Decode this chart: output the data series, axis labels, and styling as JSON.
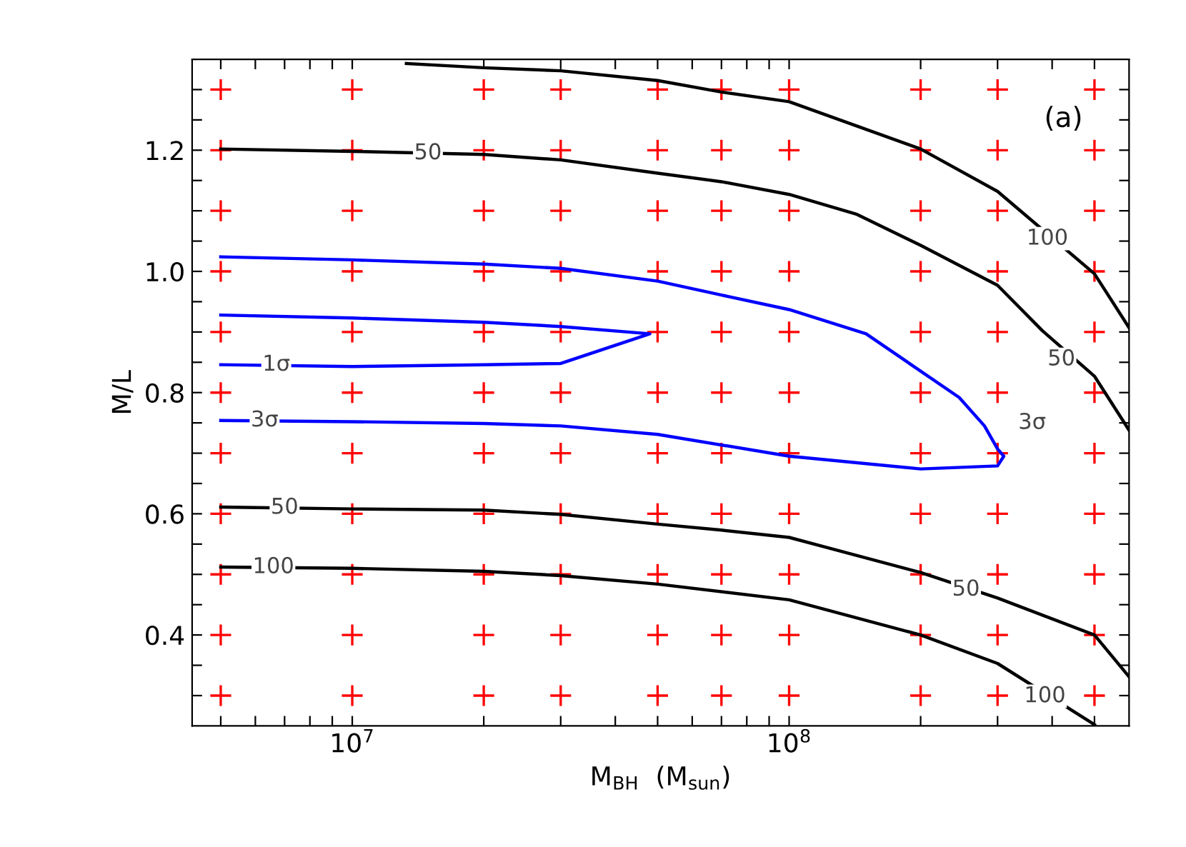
{
  "chart_data": {
    "type": "line",
    "xlabel": "M$_{BH}$  (M$_{sun}$)",
    "ylabel": "M/L",
    "log": "x",
    "grid": false,
    "legend": false,
    "xlim": [
      4300000.0,
      600000000.0
    ],
    "ylim": [
      0.25,
      1.35
    ],
    "xticks": [
      {
        "value": 5000000.0,
        "label": null
      },
      {
        "value": 6000000.0,
        "label": null
      },
      {
        "value": 7000000.0,
        "label": null
      },
      {
        "value": 8000000.0,
        "label": null
      },
      {
        "value": 9000000.0,
        "label": null
      },
      {
        "value": 10000000.0,
        "label": "10$^{7}$"
      },
      {
        "value": 20000000.0,
        "label": null
      },
      {
        "value": 30000000.0,
        "label": null
      },
      {
        "value": 40000000.0,
        "label": null
      },
      {
        "value": 50000000.0,
        "label": null
      },
      {
        "value": 60000000.0,
        "label": null
      },
      {
        "value": 70000000.0,
        "label": null
      },
      {
        "value": 80000000.0,
        "label": null
      },
      {
        "value": 90000000.0,
        "label": null
      },
      {
        "value": 100000000.0,
        "label": "10$^{8}$"
      },
      {
        "value": 200000000.0,
        "label": null
      },
      {
        "value": 300000000.0,
        "label": null
      },
      {
        "value": 400000000.0,
        "label": null
      },
      {
        "value": 500000000.0,
        "label": null
      }
    ],
    "yticks": [
      {
        "value": 0.3,
        "label": null
      },
      {
        "value": 0.35,
        "label": null
      },
      {
        "value": 0.4,
        "label": "0.4"
      },
      {
        "value": 0.45,
        "label": null
      },
      {
        "value": 0.5,
        "label": null
      },
      {
        "value": 0.55,
        "label": null
      },
      {
        "value": 0.6,
        "label": "0.6"
      },
      {
        "value": 0.65,
        "label": null
      },
      {
        "value": 0.7,
        "label": null
      },
      {
        "value": 0.75,
        "label": null
      },
      {
        "value": 0.8,
        "label": "0.8"
      },
      {
        "value": 0.85,
        "label": null
      },
      {
        "value": 0.9,
        "label": null
      },
      {
        "value": 0.95,
        "label": null
      },
      {
        "value": 1.0,
        "label": "1.0"
      },
      {
        "value": 1.05,
        "label": null
      },
      {
        "value": 1.1,
        "label": null
      },
      {
        "value": 1.15,
        "label": null
      },
      {
        "value": 1.2,
        "label": "1.2"
      },
      {
        "value": 1.25,
        "label": null
      },
      {
        "value": 1.3,
        "label": null
      }
    ],
    "series": [
      {
        "type": "scatter",
        "color": "#ff0000",
        "marker": "cross",
        "x": [
          5000000.0,
          10000000.0,
          20000000.0,
          30000000.0,
          50000000.0,
          70000000.0,
          100000000.0,
          200000000.0,
          300000000.0,
          500000000.0,
          5000000.0,
          10000000.0,
          20000000.0,
          30000000.0,
          50000000.0,
          70000000.0,
          100000000.0,
          200000000.0,
          300000000.0,
          500000000.0,
          5000000.0,
          10000000.0,
          20000000.0,
          30000000.0,
          50000000.0,
          70000000.0,
          100000000.0,
          200000000.0,
          300000000.0,
          500000000.0,
          5000000.0,
          10000000.0,
          20000000.0,
          30000000.0,
          50000000.0,
          70000000.0,
          100000000.0,
          200000000.0,
          300000000.0,
          500000000.0,
          5000000.0,
          10000000.0,
          20000000.0,
          30000000.0,
          50000000.0,
          70000000.0,
          100000000.0,
          200000000.0,
          300000000.0,
          500000000.0,
          5000000.0,
          10000000.0,
          20000000.0,
          30000000.0,
          50000000.0,
          70000000.0,
          100000000.0,
          200000000.0,
          300000000.0,
          500000000.0,
          5000000.0,
          10000000.0,
          20000000.0,
          30000000.0,
          50000000.0,
          70000000.0,
          100000000.0,
          200000000.0,
          300000000.0,
          500000000.0,
          5000000.0,
          10000000.0,
          20000000.0,
          30000000.0,
          50000000.0,
          70000000.0,
          100000000.0,
          200000000.0,
          300000000.0,
          500000000.0,
          5000000.0,
          10000000.0,
          20000000.0,
          30000000.0,
          50000000.0,
          70000000.0,
          100000000.0,
          200000000.0,
          300000000.0,
          500000000.0,
          5000000.0,
          10000000.0,
          20000000.0,
          30000000.0,
          50000000.0,
          70000000.0,
          100000000.0,
          200000000.0,
          300000000.0,
          500000000.0,
          5000000.0,
          10000000.0,
          20000000.0,
          30000000.0,
          50000000.0,
          70000000.0,
          100000000.0,
          200000000.0,
          300000000.0,
          500000000.0
        ],
        "values": [
          0.3,
          0.3,
          0.3,
          0.3,
          0.3,
          0.3,
          0.3,
          0.3,
          0.3,
          0.3,
          0.4,
          0.4,
          0.4,
          0.4,
          0.4,
          0.4,
          0.4,
          0.4,
          0.4,
          0.4,
          0.5,
          0.5,
          0.5,
          0.5,
          0.5,
          0.5,
          0.5,
          0.5,
          0.5,
          0.5,
          0.6,
          0.6,
          0.6,
          0.6,
          0.6,
          0.6,
          0.6,
          0.6,
          0.6,
          0.6,
          0.7,
          0.7,
          0.7,
          0.7,
          0.7,
          0.7,
          0.7,
          0.7,
          0.7,
          0.7,
          0.8,
          0.8,
          0.8,
          0.8,
          0.8,
          0.8,
          0.8,
          0.8,
          0.8,
          0.8,
          0.9,
          0.9,
          0.9,
          0.9,
          0.9,
          0.9,
          0.9,
          0.9,
          0.9,
          0.9,
          1.0,
          1.0,
          1.0,
          1.0,
          1.0,
          1.0,
          1.0,
          1.0,
          1.0,
          1.0,
          1.1,
          1.1,
          1.1,
          1.1,
          1.1,
          1.1,
          1.1,
          1.1,
          1.1,
          1.1,
          1.2,
          1.2,
          1.2,
          1.2,
          1.2,
          1.2,
          1.2,
          1.2,
          1.2,
          1.2,
          1.3,
          1.3,
          1.3,
          1.3,
          1.3,
          1.3,
          1.3,
          1.3,
          1.3,
          1.3
        ]
      },
      {
        "color": "#000000",
        "x": [
          13300000.0,
          20000000.0,
          30000000.0,
          50000000.0,
          70000000.0,
          100000000.0,
          200000000.0,
          300000000.0,
          500000000.0,
          600000000.0
        ],
        "values": [
          1.343,
          1.336,
          1.331,
          1.315,
          1.296,
          1.28,
          1.202,
          1.132,
          0.996,
          0.907
        ]
      },
      {
        "color": "#000000",
        "x": [
          5000000.0,
          10000000.0,
          20000000.0,
          30000000.0,
          50000000.0,
          70000000.0,
          100000000.0,
          143000000.0,
          200000000.0,
          300000000.0,
          380000000.0,
          500000000.0,
          600000000.0
        ],
        "values": [
          1.202,
          1.198,
          1.193,
          1.184,
          1.162,
          1.148,
          1.127,
          1.094,
          1.043,
          0.977,
          0.902,
          0.827,
          0.738
        ]
      },
      {
        "color": "#0000ff",
        "x": [
          5000000.0,
          10000000.0,
          20000000.0,
          30000000.0,
          50000000.0,
          70000000.0,
          100000000.0,
          150000000.0,
          245000000.0,
          280000000.0,
          300000000.0,
          310000000.0,
          300000000.0,
          200000000.0,
          100000000.0,
          50000000.0,
          30000000.0,
          20000000.0,
          10000000.0,
          5000000.0
        ],
        "values": [
          1.024,
          1.019,
          1.012,
          1.005,
          0.984,
          0.961,
          0.937,
          0.897,
          0.792,
          0.745,
          0.707,
          0.695,
          0.679,
          0.674,
          0.695,
          0.731,
          0.745,
          0.749,
          0.752,
          0.754
        ]
      },
      {
        "color": "#0000ff",
        "x": [
          5000000.0,
          10000000.0,
          20000000.0,
          30000000.0,
          48000000.0,
          30000000.0,
          20000000.0,
          10000000.0,
          5000000.0
        ],
        "values": [
          0.928,
          0.923,
          0.916,
          0.909,
          0.897,
          0.848,
          0.846,
          0.843,
          0.846
        ]
      },
      {
        "color": "#000000",
        "x": [
          5000000.0,
          10000000.0,
          20000000.0,
          30000000.0,
          50000000.0,
          70000000.0,
          100000000.0,
          200000000.0,
          300000000.0,
          500000000.0,
          600000000.0
        ],
        "values": [
          0.611,
          0.608,
          0.606,
          0.599,
          0.583,
          0.573,
          0.561,
          0.503,
          0.461,
          0.4,
          0.331
        ]
      },
      {
        "color": "#000000",
        "x": [
          5000000.0,
          10000000.0,
          20000000.0,
          30000000.0,
          50000000.0,
          100000000.0,
          200000000.0,
          300000000.0,
          500000000.0
        ],
        "values": [
          0.512,
          0.51,
          0.505,
          0.498,
          0.484,
          0.458,
          0.4,
          0.353,
          0.252
        ]
      }
    ],
    "annotations": [
      "(a)",
      {
        "text": "50",
        "x": 14900000.0,
        "y": 1.195
      },
      {
        "text": "100",
        "x": 390000000.0,
        "y": 1.054
      },
      {
        "text": "50",
        "x": 420000000.0,
        "y": 0.855
      },
      {
        "text": "1σ",
        "x": 6700000.0,
        "y": 0.846
      },
      {
        "text": "3σ",
        "x": 6300000.0,
        "y": 0.754
      },
      {
        "text": "3σ",
        "x": 360000000.0,
        "y": 0.75
      },
      {
        "text": "50",
        "x": 7000000.0,
        "y": 0.61
      },
      {
        "text": "100",
        "x": 6600000.0,
        "y": 0.512
      },
      {
        "text": "50",
        "x": 254000000.0,
        "y": 0.475
      },
      {
        "text": "100",
        "x": 385000000.0,
        "y": 0.299
      }
    ]
  }
}
